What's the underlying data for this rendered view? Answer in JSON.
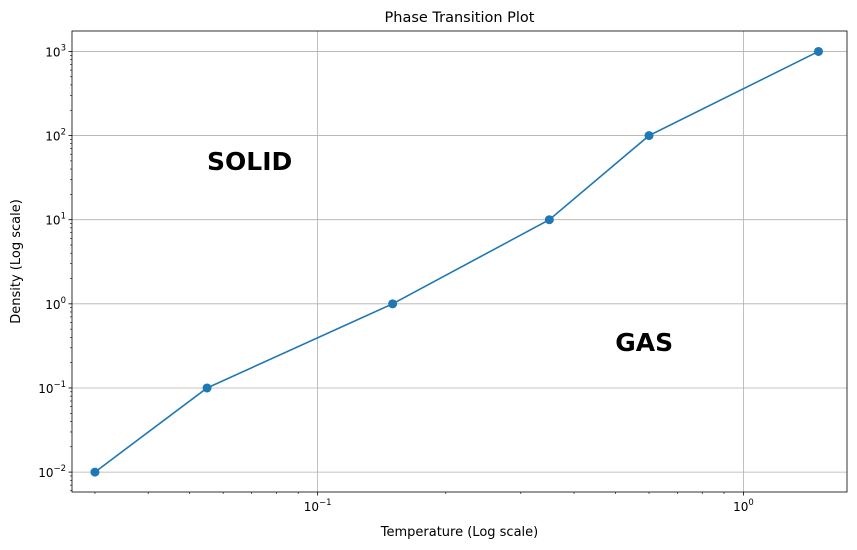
{
  "chart_data": {
    "type": "line",
    "title": "Phase Transition Plot",
    "xlabel": "Temperature (Log scale)",
    "ylabel": "Density (Log scale)",
    "xscale": "log",
    "yscale": "log",
    "xlim": [
      0.0265,
      1.75
    ],
    "ylim": [
      0.0058,
      1750
    ],
    "grid": true,
    "series": [
      {
        "x": [
          0.03,
          0.055,
          0.15,
          0.35,
          0.6,
          1.5
        ],
        "y": [
          0.01,
          0.1,
          1,
          10,
          100,
          1000
        ],
        "color": "#1f77b4",
        "marker": "circle"
      }
    ],
    "x_ticks": [
      {
        "value": 0.1,
        "base": "10",
        "exp": "−1"
      },
      {
        "value": 1,
        "base": "10",
        "exp": "0"
      }
    ],
    "y_ticks": [
      {
        "value": 0.01,
        "base": "10",
        "exp": "−2"
      },
      {
        "value": 0.1,
        "base": "10",
        "exp": "−1"
      },
      {
        "value": 1,
        "base": "10",
        "exp": "0"
      },
      {
        "value": 10,
        "base": "10",
        "exp": "1"
      },
      {
        "value": 100,
        "base": "10",
        "exp": "2"
      },
      {
        "value": 1000,
        "base": "10",
        "exp": "3"
      }
    ],
    "annotations": [
      {
        "text": "SOLID",
        "x": 0.055,
        "y": 50
      },
      {
        "text": "GAS",
        "x": 0.5,
        "y": 0.35
      }
    ]
  }
}
